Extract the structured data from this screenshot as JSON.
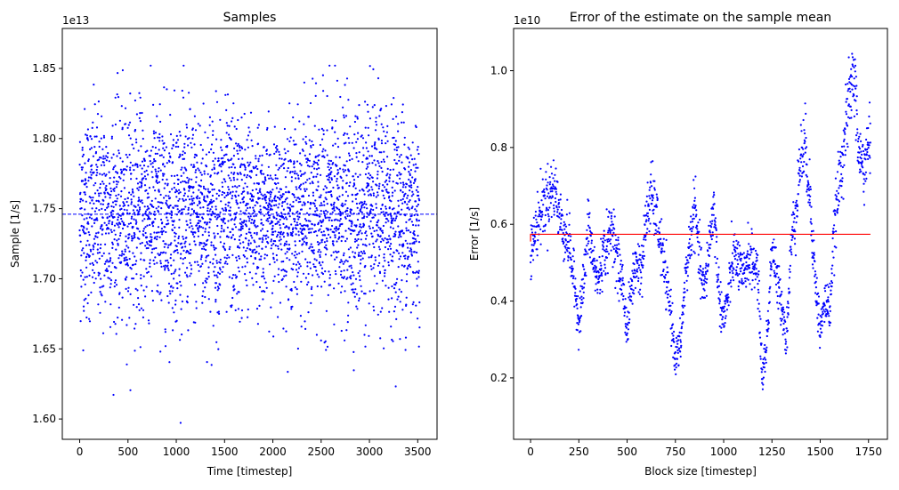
{
  "chart_data": [
    {
      "type": "scatter",
      "title": "Samples",
      "xlabel": "Time [timestep]",
      "ylabel": "Sample [1/s]",
      "offset_label": "1e13",
      "xlim": [
        -180,
        3700
      ],
      "ylim": [
        1.5855,
        1.8785
      ],
      "xticks": [
        0,
        500,
        1000,
        1500,
        2000,
        2500,
        3000,
        3500
      ],
      "xtick_labels": [
        "0",
        "500",
        "1000",
        "1500",
        "2000",
        "2500",
        "3000",
        "3500"
      ],
      "yticks": [
        1.6,
        1.65,
        1.7,
        1.75,
        1.8,
        1.85
      ],
      "ytick_labels": [
        "1.60",
        "1.65",
        "1.70",
        "1.75",
        "1.80",
        "1.85"
      ],
      "grid": false,
      "series": [
        {
          "marker_color": "#0000ff",
          "n_points": 3520,
          "x_range": [
            0,
            3520
          ],
          "mean": 1.746,
          "std": 0.037,
          "min": 1.597,
          "max": 1.852
        }
      ],
      "hlines": [
        {
          "y": 1.746,
          "color": "#0000ff",
          "style": "dashed"
        }
      ]
    },
    {
      "type": "scatter",
      "title": "Error of the estimate on the sample mean",
      "xlabel": "Block size [timestep]",
      "ylabel": "Error [1/s]",
      "offset_label": "1e10",
      "xlim": [
        -88,
        1848
      ],
      "ylim": [
        0.04,
        1.11
      ],
      "xticks": [
        0,
        250,
        500,
        750,
        1000,
        1250,
        1500,
        1750
      ],
      "xtick_labels": [
        "0",
        "250",
        "500",
        "750",
        "1000",
        "1250",
        "1500",
        "1750"
      ],
      "yticks": [
        0.2,
        0.4,
        0.6,
        0.8,
        1.0
      ],
      "ytick_labels": [
        "0.2",
        "0.4",
        "0.6",
        "0.8",
        "1.0"
      ],
      "grid": false,
      "series": [
        {
          "marker_color": "#0000ff",
          "trend_points": [
            [
              0,
              0.52
            ],
            [
              25,
              0.58
            ],
            [
              50,
              0.63
            ],
            [
              75,
              0.66
            ],
            [
              100,
              0.68
            ],
            [
              125,
              0.7
            ],
            [
              150,
              0.62
            ],
            [
              175,
              0.58
            ],
            [
              200,
              0.55
            ],
            [
              225,
              0.45
            ],
            [
              250,
              0.35
            ],
            [
              275,
              0.45
            ],
            [
              300,
              0.6
            ],
            [
              325,
              0.5
            ],
            [
              350,
              0.45
            ],
            [
              375,
              0.52
            ],
            [
              400,
              0.55
            ],
            [
              425,
              0.6
            ],
            [
              450,
              0.5
            ],
            [
              475,
              0.45
            ],
            [
              500,
              0.32
            ],
            [
              525,
              0.45
            ],
            [
              550,
              0.5
            ],
            [
              575,
              0.48
            ],
            [
              600,
              0.62
            ],
            [
              625,
              0.68
            ],
            [
              650,
              0.62
            ],
            [
              675,
              0.55
            ],
            [
              700,
              0.45
            ],
            [
              725,
              0.38
            ],
            [
              750,
              0.25
            ],
            [
              775,
              0.28
            ],
            [
              800,
              0.45
            ],
            [
              825,
              0.55
            ],
            [
              850,
              0.65
            ],
            [
              875,
              0.5
            ],
            [
              900,
              0.42
            ],
            [
              925,
              0.55
            ],
            [
              950,
              0.65
            ],
            [
              975,
              0.42
            ],
            [
              1000,
              0.35
            ],
            [
              1025,
              0.42
            ],
            [
              1050,
              0.52
            ],
            [
              1075,
              0.5
            ],
            [
              1100,
              0.45
            ],
            [
              1125,
              0.52
            ],
            [
              1150,
              0.5
            ],
            [
              1175,
              0.48
            ],
            [
              1200,
              0.2
            ],
            [
              1225,
              0.3
            ],
            [
              1250,
              0.55
            ],
            [
              1275,
              0.45
            ],
            [
              1300,
              0.4
            ],
            [
              1325,
              0.3
            ],
            [
              1350,
              0.55
            ],
            [
              1375,
              0.65
            ],
            [
              1400,
              0.78
            ],
            [
              1425,
              0.8
            ],
            [
              1450,
              0.65
            ],
            [
              1475,
              0.45
            ],
            [
              1500,
              0.32
            ],
            [
              1525,
              0.4
            ],
            [
              1550,
              0.38
            ],
            [
              1575,
              0.6
            ],
            [
              1600,
              0.72
            ],
            [
              1625,
              0.82
            ],
            [
              1650,
              0.92
            ],
            [
              1675,
              1.0
            ],
            [
              1700,
              0.78
            ],
            [
              1725,
              0.75
            ],
            [
              1750,
              0.8
            ]
          ]
        }
      ],
      "lines": [
        {
          "color": "#ff0000",
          "points": [
            [
              0,
              0.555
            ],
            [
              0,
              0.574
            ],
            [
              1760,
              0.574
            ]
          ]
        }
      ]
    }
  ]
}
